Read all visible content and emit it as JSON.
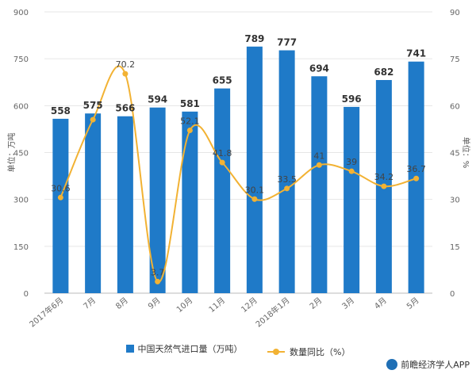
{
  "chart_data": {
    "type": "bar",
    "categories": [
      "2017年6月",
      "7月",
      "8月",
      "9月",
      "10月",
      "11月",
      "12月",
      "2018年1月",
      "2月",
      "3月",
      "4月",
      "5月"
    ],
    "series": [
      {
        "name": "中国天然气进口量（万吨）",
        "type": "bar",
        "axis": "left",
        "color": "#1f7ac8",
        "values": [
          558,
          575,
          566,
          594,
          581,
          655,
          789,
          777,
          694,
          596,
          682,
          741
        ]
      },
      {
        "name": "数量同比（%）",
        "type": "line",
        "axis": "right",
        "color": "#f2b233",
        "values": [
          30.6,
          55.5,
          70.2,
          3.7,
          52.1,
          41.8,
          30.1,
          33.5,
          41,
          39,
          34.2,
          36.7
        ],
        "labels": [
          "30.6",
          "",
          "70.2",
          "3.7",
          "52.1",
          "41.8",
          "30.1",
          "33.5",
          "41",
          "39",
          "34.2",
          "36.7"
        ]
      }
    ],
    "y_left": {
      "label": "单位：万吨",
      "ylim": [
        0,
        900
      ],
      "ticks": [
        "0",
        "150",
        "300",
        "450",
        "600",
        "750",
        "900"
      ]
    },
    "y_right": {
      "label": "单位：%",
      "ylim": [
        0,
        90
      ],
      "ticks": [
        "0",
        "15",
        "30",
        "45",
        "60",
        "75",
        "90"
      ]
    },
    "grid": true,
    "legend_position": "bottom"
  },
  "footer": {
    "text": "前瞻经济学人APP"
  }
}
